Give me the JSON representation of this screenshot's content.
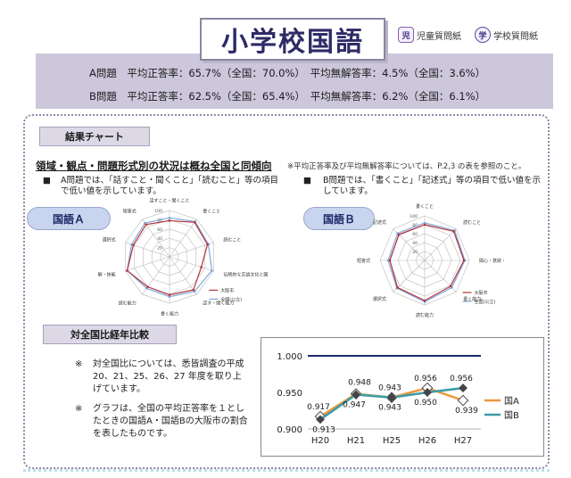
{
  "title": "小学校国語",
  "questionnaires": {
    "student": {
      "badge": "児",
      "label": "児童質問紙"
    },
    "school": {
      "badge": "学",
      "label": "学校質問紙"
    }
  },
  "summary": {
    "rowA": "A問題　平均正答率：65.7%（全国：70.0%）　平均無解答率：4.5%（全国：3.6%）",
    "rowB": "B問題　平均正答率：62.5%（全国：65.4%）　平均無解答率：6.2%（全国：6.1%）"
  },
  "result_section": {
    "header": "結果チャート",
    "heading": "領域・観点・問題形式別の状況は概ね全国と同傾向",
    "note": "※平均正答率及び平均無解答率については、P.2,3 の表を参照のこと。",
    "bulletA": "A問題では、「話すこと・聞くこと」「読むこと」等の項目で低い値を示しています。",
    "bulletB": "B問題では、「書くこと」「記述式」等の項目で低い値を示しています。",
    "pillA": "国語Ａ",
    "pillB": "国語Ｂ"
  },
  "radarA": {
    "labels": [
      "話すこと・聞くこと",
      "書くこと",
      "読むこと",
      "伝統的な言語文化と国語の特質に関する事項",
      "話す・聞く能力",
      "書く能力",
      "読む能力",
      "知識・理解・技能",
      "選択式",
      "短答式"
    ],
    "ticks": [
      "100",
      "80",
      "60",
      "40",
      "20"
    ],
    "legend": [
      "大阪市",
      "全国(公立)"
    ],
    "osaka": [
      78,
      92,
      86,
      72,
      88,
      82,
      80,
      96,
      82,
      86
    ],
    "zenkoku": [
      84,
      94,
      88,
      96,
      92,
      86,
      84,
      96,
      86,
      90
    ]
  },
  "radarB": {
    "labels": [
      "書くこと",
      "読むこと",
      "関心・意欲・態度",
      "書く能力",
      "読む能力",
      "選択式",
      "短答式",
      "記述式"
    ],
    "ticks": [
      "100",
      "80",
      "60",
      "40",
      "20"
    ],
    "legend": [
      "大阪市",
      "全国(公立)"
    ],
    "osaka": [
      80,
      92,
      88,
      82,
      90,
      86,
      78,
      82
    ],
    "zenkoku": [
      84,
      95,
      90,
      86,
      93,
      88,
      82,
      86
    ]
  },
  "trend_section": {
    "header": "対全国比経年比較",
    "notes": [
      {
        "mark": "※",
        "text": "対全国比については、悉皆調査の平成20、21、25、26、27 年度を取り上げています。"
      },
      {
        "mark": "※",
        "text": "グラフは、全国の平均正答率を１としたときの国語A・国語Bの大阪市の割合を表したものです。"
      }
    ]
  },
  "chart_data": {
    "type": "line",
    "categories": [
      "H20",
      "H21",
      "H25",
      "H26",
      "H27"
    ],
    "ylim": [
      0.9,
      1.0
    ],
    "yticks": [
      "1.000",
      "0.950",
      "0.900"
    ],
    "reference_line": 1.0,
    "series": [
      {
        "name": "国A",
        "color": "#f0963c",
        "values": [
          0.917,
          0.948,
          0.943,
          0.956,
          0.939
        ],
        "labels": [
          "0.917",
          "0.948",
          "0.943",
          "0.956",
          "0.939"
        ]
      },
      {
        "name": "国B",
        "color": "#3a9ca6",
        "values": [
          0.913,
          0.947,
          0.943,
          0.95,
          0.956
        ],
        "labels": [
          "0.913",
          "0.947",
          "0.943",
          "0.950",
          "0.956"
        ]
      }
    ]
  }
}
